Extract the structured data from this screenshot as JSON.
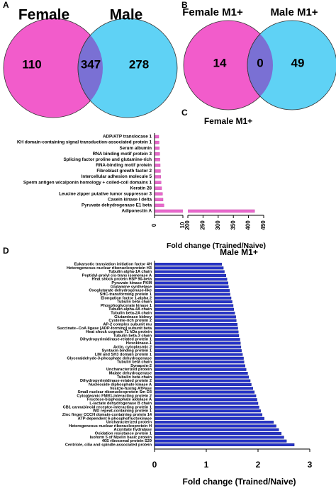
{
  "chart_data": [
    {
      "type": "venn",
      "panel": "A",
      "sets": [
        "Female",
        "Male"
      ],
      "values": [
        110,
        347,
        278
      ],
      "colors": [
        "#f25ccb",
        "#5fd2f5"
      ],
      "overlap_color": "#7a70d4"
    },
    {
      "type": "venn",
      "panel": "B",
      "sets": [
        "Female M1+",
        "Male M1+"
      ],
      "values": [
        14,
        0,
        49
      ],
      "colors": [
        "#f25ccb",
        "#5fd2f5"
      ],
      "overlap_color": "#7a70d4"
    },
    {
      "type": "barh",
      "panel": "C",
      "title": "Female M1+",
      "xlabel": "Fold change (Trained/Naive)",
      "categories": [
        "ADP/ATP translocase 1",
        "KH domain-containing signal transduction-associated protein 1",
        "Serum albumin",
        "RNA binding motif protein 3",
        "Splicing factor proline and glutamine-rich",
        "RNA-binding motif protein",
        "Fibroblast growth factor 2",
        "Intercellular adhesion molecule 5",
        "Sperm antigen w/calponin homology + coiled-coil domains 1",
        "Keratin 28",
        "Leucine zipper putative tumor suppressor 3",
        "Casein kinase I delta",
        "Pyruvate dehydrogenase E1 beta",
        "Adiponectin A"
      ],
      "values": [
        1.5,
        1.6,
        1.7,
        1.8,
        1.9,
        2.0,
        2.1,
        2.2,
        2.3,
        2.5,
        2.8,
        3.0,
        3.3,
        420
      ],
      "color": "#e868cc",
      "xlim": [
        0,
        450
      ],
      "axis_break": [
        10,
        200
      ],
      "xticks": [
        0,
        10,
        200,
        250,
        300,
        350,
        400,
        450
      ]
    },
    {
      "type": "barh",
      "panel": "D",
      "title": "Male M1+",
      "xlabel": "Fold change (Trained/Naive)",
      "categories": [
        "Eukaryotic translation initiation factor 4H",
        "Heterogeneous nuclear ribonucleoprotein H3",
        "Tubulin alpha-1A chain",
        "Peptidyl-prolyl cis-trans isomerase A",
        "Heat shock protein HSP 90-beta",
        "Pyruvate kinase PKM",
        "Glutamine synthetase",
        "Oxoglutarate dehydrogenase-like",
        "SHC-transforming protein 1",
        "Elongation factor 1-alpha 2",
        "Tubulin beta chain",
        "Phosphoglycerate kinase 1",
        "Tubulin alpha-4A chain",
        "Tubulin beta-2A chain",
        "Glutaminase kidney",
        "Cysteine-rich protein 2",
        "AP-2 complex subunit mu",
        "Succinate--CoA ligase [ADP-forming] subunit beta",
        "Heat shock cognate 71 kDa protein",
        "Tubulin beta-3 chain",
        "Dihydropyrimidinase-related protein 1",
        "Hexokinase-1",
        "Actin, cytoplasmic 2",
        "Syntaxin-binding protein 1",
        "LIM and SH3 domain protein 1",
        "Glyceraldehyde-3-phosphate dehydrogenase",
        "Tubulin beta chain",
        "Synapsin-2",
        "Uncharacterized protein",
        "Malate dehydrogenase",
        "Tubulin beta chain",
        "Dihydropyrimidinase-related protein 2",
        "Nucleoside diphosphate kinase A",
        "Vesicle-fusing ATPase",
        "Small nuclear ribonucleoprotein Sm D3",
        "Cytoplasmic FMR1-interacting protein 2",
        "Fructose-bisphosphate aldolase A",
        "L-lactate dehydrogenase B chain",
        "CB1 cannabinoid receptor-interacting protein 1",
        "WD repeat-containing protein 1",
        "Zinc finger CCCH domain-containing protein 14",
        "ATP-dependent 6-phosphofructokinase",
        "Uncharacterized protein",
        "Heterogeneous nuclear ribonucleoprotein H",
        "Aconitate hydratase",
        "Oxidation resistance protein 1",
        "Isoform 5 of Myelin basic protein",
        "40S ribosomal protein S29",
        "Centriole, cilia and spindle-associated protein"
      ],
      "values": [
        1.3,
        1.33,
        1.35,
        1.38,
        1.4,
        1.42,
        1.43,
        1.45,
        1.46,
        1.48,
        1.5,
        1.52,
        1.53,
        1.55,
        1.57,
        1.58,
        1.6,
        1.61,
        1.62,
        1.63,
        1.65,
        1.66,
        1.67,
        1.68,
        1.7,
        1.72,
        1.73,
        1.75,
        1.77,
        1.8,
        1.82,
        1.85,
        1.87,
        1.9,
        1.93,
        1.96,
        1.98,
        2.0,
        2.02,
        2.05,
        2.08,
        2.12,
        2.3,
        2.35,
        2.4,
        2.45,
        2.5,
        2.55,
        2.7
      ],
      "color": "#2633c8",
      "xlim": [
        0,
        3
      ],
      "xticks": [
        0,
        1,
        2,
        3
      ]
    }
  ]
}
